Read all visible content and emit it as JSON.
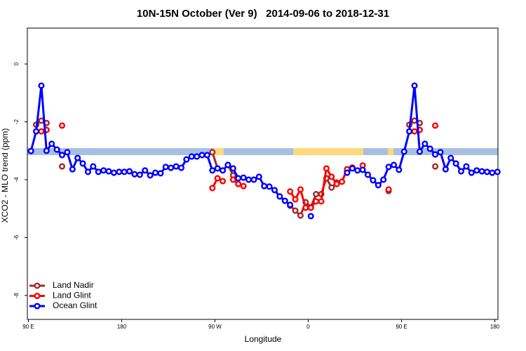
{
  "chart_data": {
    "type": "line",
    "title": "10N-15N October (Ver 9)   2014-09-06 to 2018-12-31",
    "x_label": "Longitude",
    "y_label": "XCO2 - MLO trend (ppm)",
    "x": [
      92.5,
      97.5,
      102.5,
      107.5,
      112.5,
      117.5,
      122.5,
      127.5,
      132.5,
      137.5,
      142.5,
      147.5,
      152.5,
      157.5,
      162.5,
      167.5,
      172.5,
      177.5,
      182.5,
      187.5,
      192.5,
      197.5,
      202.5,
      207.5,
      212.5,
      217.5,
      222.5,
      227.5,
      232.5,
      237.5,
      242.5,
      247.5,
      252.5,
      257.5,
      262.5,
      267.5,
      272.5,
      277.5,
      282.5,
      287.5,
      292.5,
      297.5,
      302.5,
      307.5,
      312.5,
      317.5,
      322.5,
      327.5,
      332.5,
      337.5,
      342.5,
      347.5,
      352.5,
      357.5,
      362.5,
      367.5,
      372.5,
      377.5,
      382.5,
      387.5,
      392.5,
      397.5,
      402.5,
      407.5,
      412.5,
      417.5,
      422.5,
      427.5,
      432.5,
      437.5,
      442.5,
      447.5,
      452.5,
      457.5,
      462.5,
      467.5,
      472.5,
      477.5,
      482.5,
      487.5,
      492.5,
      497.5,
      502.5,
      507.5,
      512.5,
      517.5,
      522.5,
      527.5,
      532.5,
      537.5,
      542.5
    ],
    "series": [
      {
        "name": "Land Nadir",
        "color": "#a52a2a",
        "values": [
          null,
          -2.1,
          -1.96,
          -2.04,
          null,
          null,
          -3.54,
          null,
          null,
          null,
          null,
          null,
          null,
          null,
          null,
          null,
          null,
          null,
          null,
          null,
          null,
          null,
          null,
          null,
          null,
          null,
          null,
          null,
          null,
          null,
          null,
          null,
          null,
          null,
          null,
          -3.05,
          -3.61,
          null,
          -3.49,
          -3.85,
          null,
          null,
          null,
          null,
          null,
          null,
          null,
          null,
          null,
          null,
          -4.9,
          -5.07,
          -5.24,
          -4.78,
          -4.95,
          -4.5,
          -4.5,
          -3.95,
          -4.27,
          -4.1,
          null,
          -3.7,
          null,
          null,
          null,
          null,
          null,
          null,
          null,
          -4.39,
          null,
          null,
          null,
          -2.1,
          -1.96,
          -2.04,
          null,
          null,
          -3.54,
          null,
          null,
          null,
          null,
          null,
          null,
          null,
          null,
          null,
          null,
          null,
          null
        ]
      },
      {
        "name": "Land Glint",
        "color": "#ff0000",
        "values": [
          null,
          null,
          -2.33,
          -2.28,
          null,
          null,
          -2.13,
          null,
          null,
          null,
          null,
          null,
          null,
          null,
          null,
          null,
          null,
          null,
          null,
          null,
          null,
          null,
          null,
          null,
          null,
          null,
          null,
          null,
          null,
          null,
          null,
          null,
          null,
          null,
          null,
          -4.29,
          -3.95,
          -4.05,
          null,
          -4.0,
          -4.15,
          -4.22,
          null,
          null,
          null,
          null,
          null,
          null,
          null,
          null,
          -4.41,
          -4.68,
          -4.34,
          -4.97,
          -4.97,
          -4.75,
          -4.75,
          -3.61,
          -3.9,
          -4.15,
          -4.07,
          -3.64,
          -3.58,
          null,
          -3.51,
          null,
          null,
          null,
          null,
          -4.34,
          null,
          null,
          null,
          null,
          -2.33,
          -2.28,
          null,
          null,
          -2.13,
          null,
          null,
          null,
          null,
          null,
          null,
          null,
          null,
          null,
          null,
          null,
          null
        ]
      },
      {
        "name": "Ocean Glint",
        "color": "#0000ff",
        "values": [
          -3.01,
          -2.33,
          -0.75,
          -3.0,
          -2.76,
          -2.96,
          -3.15,
          -3.05,
          -3.64,
          -3.25,
          -3.44,
          -3.73,
          -3.54,
          -3.73,
          -3.68,
          -3.71,
          -3.76,
          -3.73,
          -3.73,
          -3.71,
          -3.81,
          -3.83,
          -3.68,
          -3.85,
          -3.76,
          -3.78,
          -3.56,
          -3.59,
          -3.54,
          -3.59,
          -3.3,
          -3.2,
          -3.2,
          -3.15,
          -3.15,
          -3.68,
          -3.61,
          -3.68,
          -3.49,
          -3.61,
          -3.95,
          -3.93,
          -4.0,
          -4.0,
          -3.9,
          -4.22,
          -4.24,
          -4.36,
          -4.58,
          -4.73,
          -4.87,
          null,
          null,
          null,
          -5.26,
          null,
          null,
          null,
          null,
          null,
          null,
          -3.76,
          -3.61,
          -3.68,
          -3.66,
          -3.83,
          -4.02,
          -4.19,
          -4.0,
          -3.56,
          -3.49,
          -3.66,
          -3.03,
          -2.33,
          -0.75,
          -3.03,
          -2.76,
          -2.93,
          -3.13,
          -3.05,
          -3.64,
          -3.25,
          -3.44,
          -3.71,
          -3.54,
          -3.76,
          -3.68,
          -3.71,
          -3.73,
          -3.76,
          -3.73
        ]
      }
    ],
    "xlim": [
      89,
      543
    ],
    "ylim": [
      -8.83,
      1.24
    ],
    "xticks": [
      {
        "value": 90,
        "label": "90 E"
      },
      180,
      {
        "value": 270,
        "label": "90 W"
      },
      {
        "value": 360,
        "label": "0"
      },
      {
        "value": 450,
        "label": "90 E"
      },
      {
        "value": 540,
        "label": "180"
      }
    ],
    "yticks": [
      0,
      -2,
      -4,
      -6,
      -8
    ],
    "legend": "bottom-left"
  }
}
